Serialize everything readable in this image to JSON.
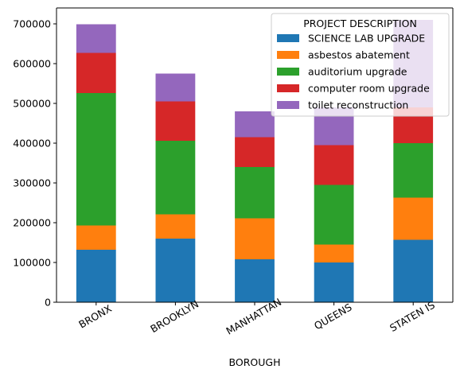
{
  "chart_data": {
    "type": "bar",
    "stacked": true,
    "xlabel": "BOROUGH",
    "ylabel": "",
    "ylim": [
      0,
      740000
    ],
    "yticks": [
      0,
      100000,
      200000,
      300000,
      400000,
      500000,
      600000,
      700000
    ],
    "categories": [
      "BRONX",
      "BROOKLYN",
      "MANHATTAN",
      "QUEENS",
      "STATEN IS"
    ],
    "legend": {
      "title": "PROJECT DESCRIPTION",
      "placement": "top-right"
    },
    "grid": false,
    "series": [
      {
        "name": "SCIENCE LAB UPGRADE",
        "color": "#1f77b4",
        "values": [
          132000,
          160000,
          108000,
          100000,
          157000
        ]
      },
      {
        "name": "asbestos abatement",
        "color": "#ff7f0e",
        "values": [
          61000,
          61000,
          103000,
          45000,
          106000
        ]
      },
      {
        "name": "auditorium  upgrade",
        "color": "#2ca02c",
        "values": [
          333000,
          185000,
          129000,
          150000,
          137000
        ]
      },
      {
        "name": "computer room upgrade",
        "color": "#d62728",
        "values": [
          101000,
          99000,
          75000,
          100000,
          90000
        ]
      },
      {
        "name": "toilet reconstruction",
        "color": "#9467bd",
        "values": [
          72000,
          70000,
          65000,
          95000,
          220000
        ]
      }
    ]
  }
}
